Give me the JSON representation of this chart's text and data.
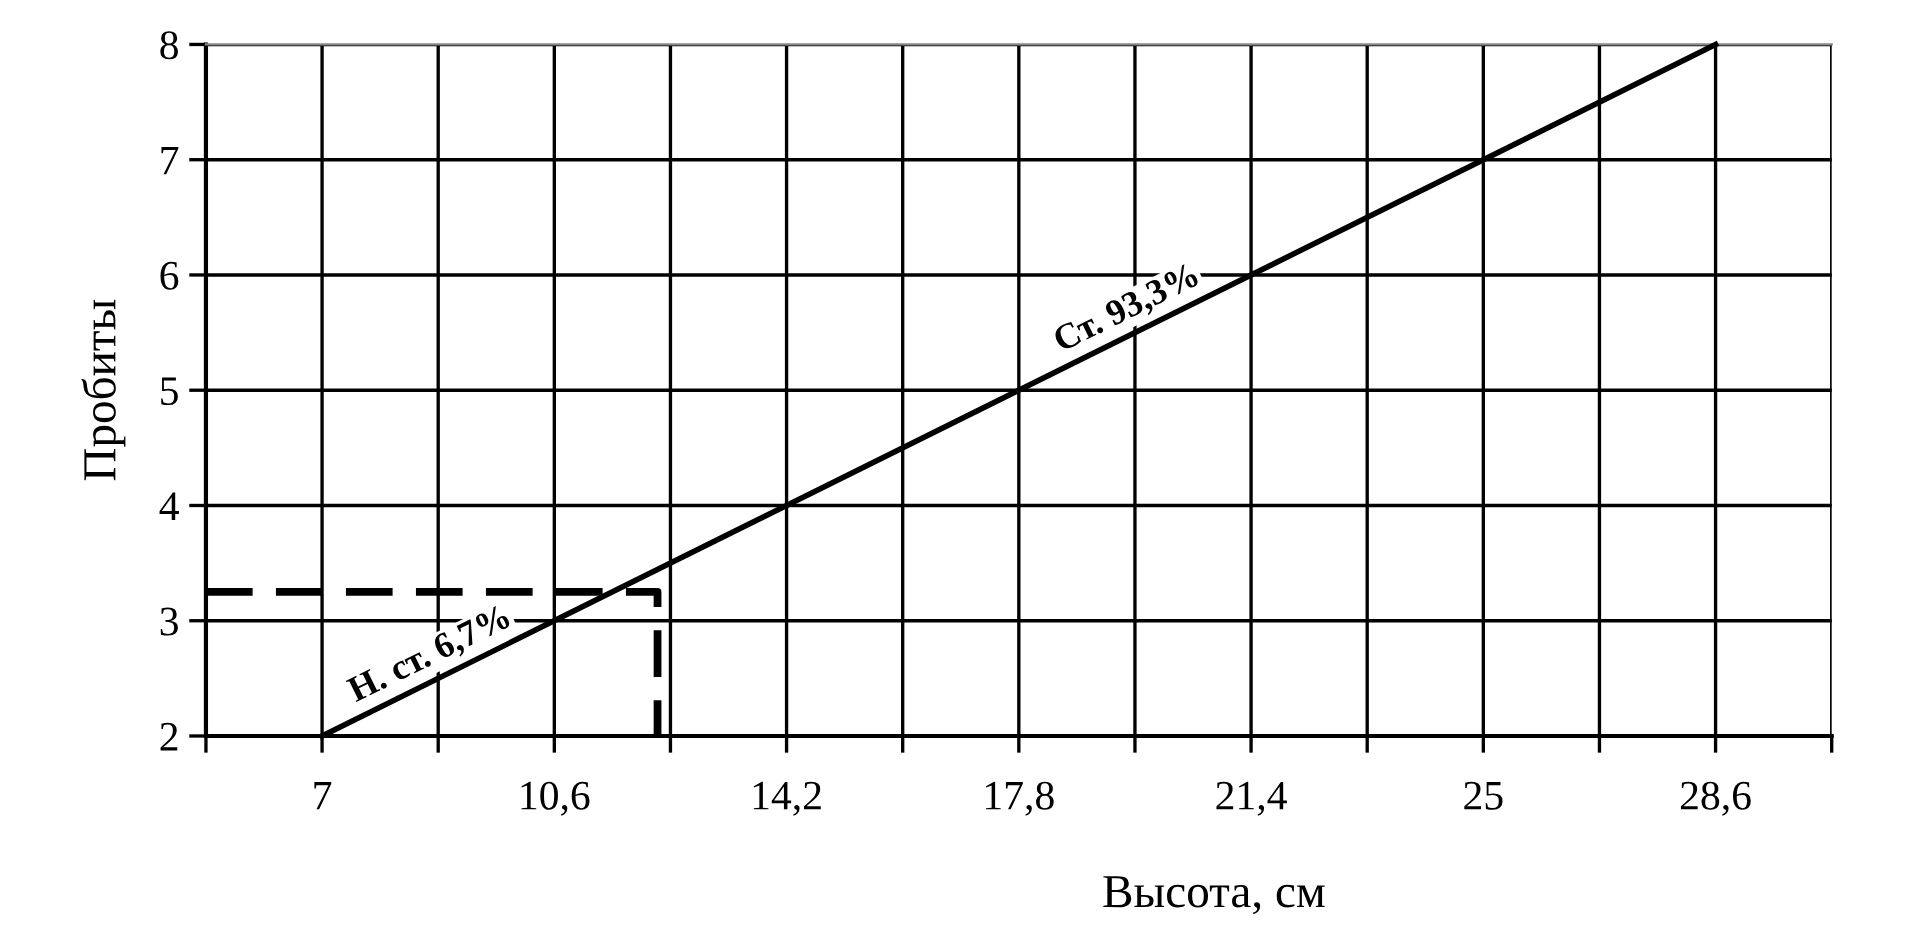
{
  "chart_data": {
    "type": "line",
    "xlabel": "Высота, см",
    "ylabel": "Пробиты",
    "series": [
      {
        "x": [
          7,
          28.6
        ],
        "values": [
          2,
          8
        ],
        "color": "#000000",
        "line_style": "solid"
      },
      {
        "x": [
          5.2,
          12.2,
          12.2
        ],
        "values": [
          3.25,
          3.25,
          2
        ],
        "color": "#000000",
        "line_style": "dashed"
      }
    ],
    "annotations": [
      {
        "text": "Н. ст. 6,7%",
        "x": 8.8,
        "y": 2.5
      },
      {
        "text": "Ст. 93,3%",
        "x": 19.6,
        "y": 5.5
      }
    ],
    "xlim": [
      5.2,
      30.4
    ],
    "xticks": [
      {
        "value": 5.2,
        "label": null
      },
      7,
      {
        "value": 8.8,
        "label": null
      },
      {
        "value": 10.6,
        "label": "10,6"
      },
      {
        "value": 12.4,
        "label": null
      },
      {
        "value": 14.2,
        "label": "14,2"
      },
      {
        "value": 16,
        "label": null
      },
      {
        "value": 17.8,
        "label": "17,8"
      },
      {
        "value": 19.6,
        "label": null
      },
      {
        "value": 21.4,
        "label": "21,4"
      },
      {
        "value": 23.2,
        "label": null
      },
      25,
      {
        "value": 26.8,
        "label": null
      },
      {
        "value": 28.6,
        "label": "28,6"
      },
      {
        "value": 30.4,
        "label": null
      }
    ],
    "ylim": [
      2,
      8
    ],
    "yticks": [
      2,
      3,
      4,
      5,
      6,
      7,
      8
    ],
    "grid": true,
    "marker": "none"
  }
}
